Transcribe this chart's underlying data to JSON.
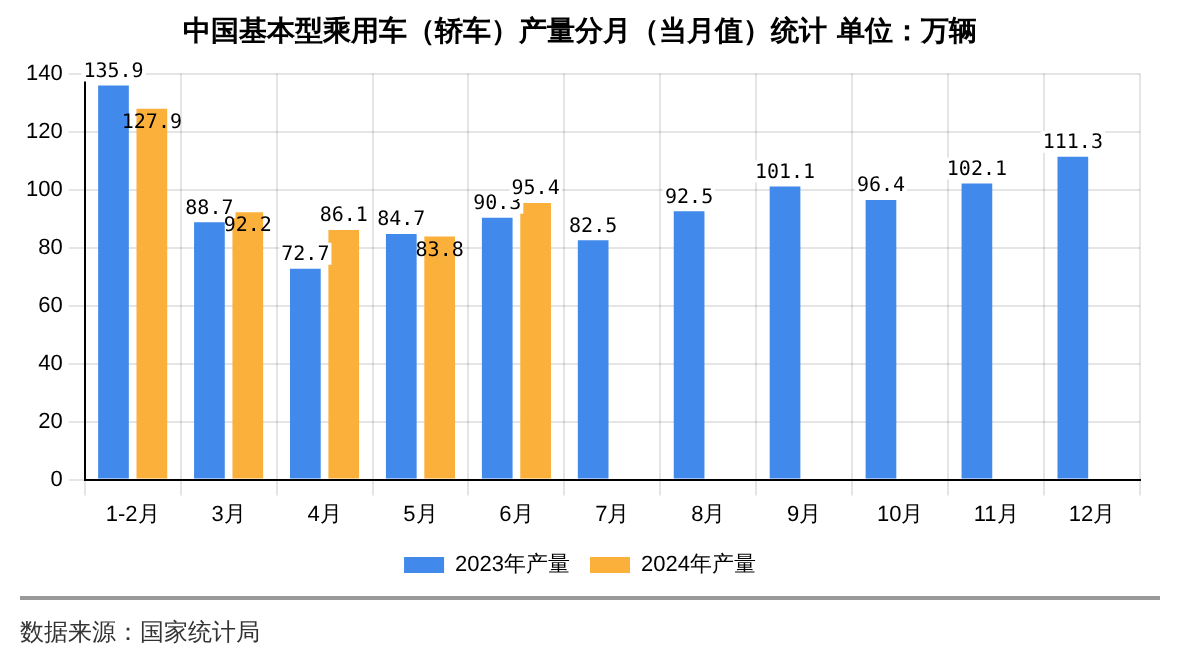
{
  "chart_data": {
    "type": "bar",
    "title": "中国基本型乘用车（轿车）产量分月（当月值）统计 单位：万辆",
    "categories": [
      "1-2月",
      "3月",
      "4月",
      "5月",
      "6月",
      "7月",
      "8月",
      "9月",
      "10月",
      "11月",
      "12月"
    ],
    "series": [
      {
        "name": "2023年产量",
        "color": "#4189ea",
        "values": [
          135.9,
          88.7,
          72.7,
          84.7,
          90.3,
          82.5,
          92.5,
          101.1,
          96.4,
          102.1,
          111.3
        ]
      },
      {
        "name": "2024年产量",
        "color": "#fbb03b",
        "values": [
          127.9,
          92.2,
          86.1,
          83.8,
          95.4,
          null,
          null,
          null,
          null,
          null,
          null
        ]
      }
    ],
    "ylim": [
      0,
      140
    ],
    "yticks": [
      0,
      20,
      40,
      60,
      80,
      100,
      120,
      140
    ],
    "grid": true,
    "legend": "bottom",
    "data_labels": true,
    "annotations": [
      "数据来源：国家统计局"
    ]
  }
}
